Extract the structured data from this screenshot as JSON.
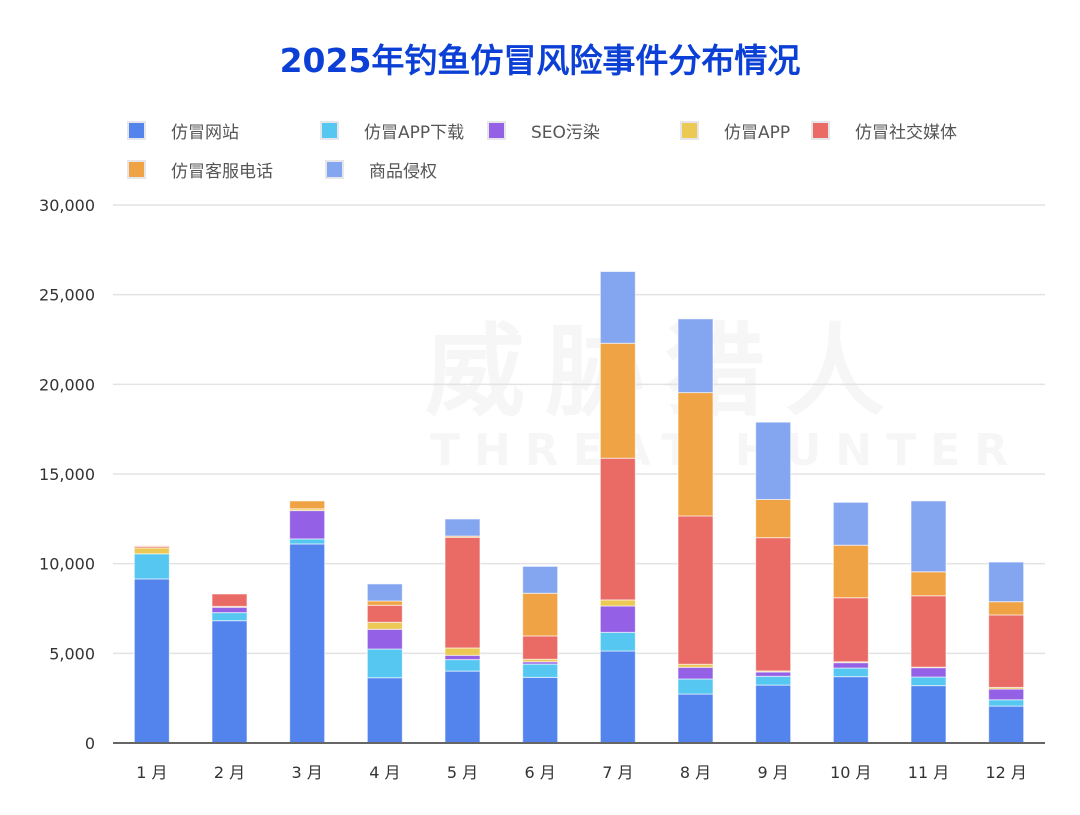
{
  "chart_data": {
    "type": "bar",
    "stacked": true,
    "title": "2025年钓鱼仿冒风险事件分布情况",
    "xlabel": "",
    "ylabel": "",
    "ylim": [
      0,
      30000
    ],
    "yticks": [
      "0",
      "5,000",
      "10,000",
      "15,000",
      "20,000",
      "25,000",
      "30,000"
    ],
    "ytick_values": [
      0,
      5000,
      10000,
      15000,
      20000,
      25000,
      30000
    ],
    "grid": true,
    "legend_position": "top-left",
    "categories": [
      "1 月",
      "2 月",
      "3 月",
      "4 月",
      "5 月",
      "6 月",
      "7 月",
      "8 月",
      "9 月",
      "10 月",
      "11 月",
      "12 月"
    ],
    "series": [
      {
        "name": "仿冒网站",
        "color": "#5384ee",
        "values": [
          9150,
          6820,
          11100,
          3640,
          4010,
          3660,
          5130,
          2730,
          3230,
          3700,
          3200,
          2060
        ]
      },
      {
        "name": "仿冒APP下载",
        "color": "#56c7f0",
        "values": [
          1400,
          450,
          280,
          1600,
          640,
          740,
          1040,
          840,
          490,
          480,
          480,
          350
        ]
      },
      {
        "name": "SEO污染",
        "color": "#9461e6",
        "values": [
          0,
          300,
          1580,
          1100,
          240,
          130,
          1470,
          650,
          240,
          300,
          520,
          600
        ]
      },
      {
        "name": "仿冒APP",
        "color": "#ecc954",
        "values": [
          330,
          50,
          100,
          390,
          410,
          140,
          340,
          170,
          60,
          50,
          30,
          90
        ]
      },
      {
        "name": "仿冒社交媒体",
        "color": "#ea6b66",
        "values": [
          80,
          690,
          0,
          950,
          6170,
          1300,
          7900,
          8270,
          7430,
          3570,
          3980,
          4040
        ]
      },
      {
        "name": "仿冒客服电话",
        "color": "#f0a345",
        "values": [
          40,
          0,
          440,
          240,
          70,
          2380,
          6410,
          6880,
          2130,
          2930,
          1340,
          740
        ]
      },
      {
        "name": "商品侵权",
        "color": "#84a5ef",
        "values": [
          0,
          0,
          0,
          950,
          950,
          1500,
          4000,
          4110,
          4310,
          2390,
          3950,
          2210
        ]
      }
    ]
  },
  "watermark": {
    "cn": "威胁猎人",
    "en": "THREAT HUNTER"
  }
}
